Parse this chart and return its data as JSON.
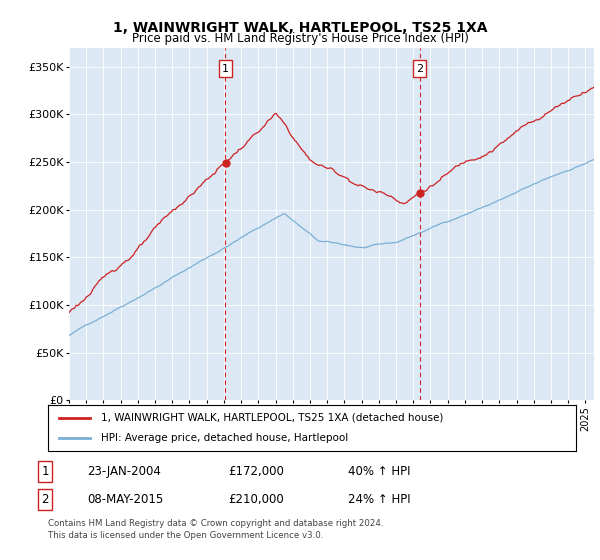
{
  "title": "1, WAINWRIGHT WALK, HARTLEPOOL, TS25 1XA",
  "subtitle": "Price paid vs. HM Land Registry's House Price Index (HPI)",
  "ylim": [
    0,
    370000
  ],
  "yticks": [
    0,
    50000,
    100000,
    150000,
    200000,
    250000,
    300000,
    350000
  ],
  "ytick_labels": [
    "£0",
    "£50K",
    "£100K",
    "£150K",
    "£200K",
    "£250K",
    "£300K",
    "£350K"
  ],
  "legend_line1": "1, WAINWRIGHT WALK, HARTLEPOOL, TS25 1XA (detached house)",
  "legend_line2": "HPI: Average price, detached house, Hartlepool",
  "marker1_date": 2004.07,
  "marker2_date": 2015.37,
  "marker1_price": 172000,
  "marker2_price": 210000,
  "table_row1": [
    "1",
    "23-JAN-2004",
    "£172,000",
    "40% ↑ HPI"
  ],
  "table_row2": [
    "2",
    "08-MAY-2015",
    "£210,000",
    "24% ↑ HPI"
  ],
  "footnote1": "Contains HM Land Registry data © Crown copyright and database right 2024.",
  "footnote2": "This data is licensed under the Open Government Licence v3.0.",
  "hpi_color": "#7bafd4",
  "price_color": "#cc2222",
  "vline_color": "#cc2222",
  "bg_color": "#dce9f5"
}
